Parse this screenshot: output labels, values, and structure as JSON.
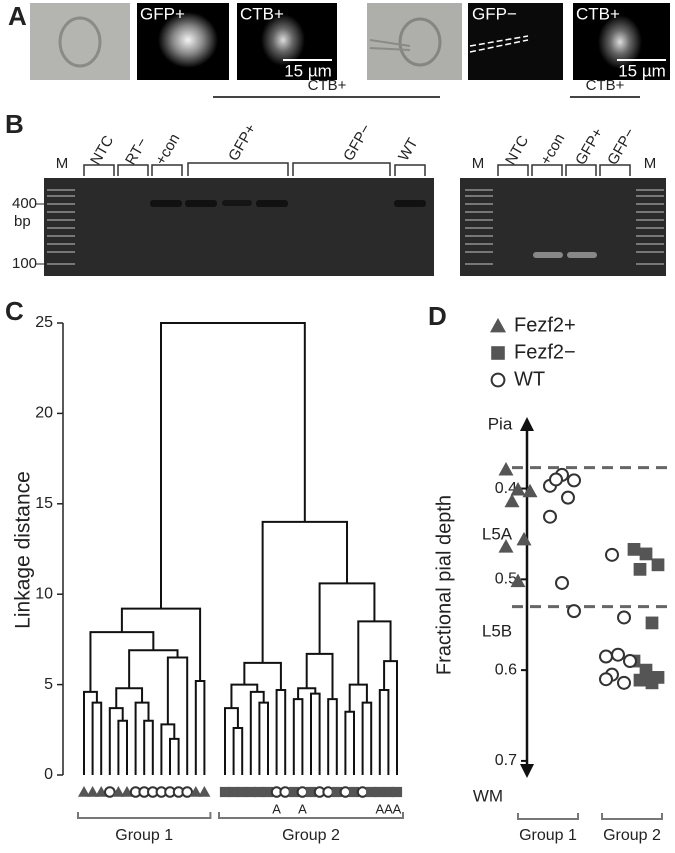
{
  "figure": {
    "panel_labels": [
      "A",
      "B",
      "C",
      "D"
    ],
    "panel_a": {
      "image_labels": [
        "GFP+",
        "CTB+",
        "GFP−",
        "CTB+"
      ],
      "scale_bars": [
        "15 µm",
        "15 µm"
      ]
    },
    "panel_b": {
      "group_labels": [
        "CTB+",
        "CTB+"
      ],
      "lane_labels_left": [
        "NTC",
        "RT−",
        "+con",
        "GFP+",
        "GFP−",
        "WT"
      ],
      "lane_labels_right": [
        "NTC",
        "+con",
        "GFP+",
        "GFP−"
      ],
      "marker_labels": [
        "M",
        "M",
        "M"
      ],
      "size_labels": [
        400,
        100
      ],
      "size_unit": "bp"
    }
  },
  "chart_data": [
    {
      "type": "dendrogram",
      "ylabel": "Linkage distance",
      "ylim": [
        0,
        25
      ],
      "yticks": [
        0,
        5,
        10,
        15,
        20,
        25
      ],
      "group_labels": [
        "Group 1",
        "Group 2"
      ],
      "marker_colors": {
        "triangle": "#555555",
        "square": "#555555",
        "circle": "#ffffff"
      },
      "tree": {
        "height": 25,
        "children": [
          {
            "height": 9.2,
            "children": [
              {
                "height": 7.9,
                "children": [
                  {
                    "height": 4.6,
                    "children": [
                      {
                        "marker": "triangle"
                      },
                      {
                        "height": 4.0,
                        "children": [
                          {
                            "marker": "triangle"
                          },
                          {
                            "marker": "triangle"
                          }
                        ]
                      }
                    ]
                  },
                  {
                    "height": 6.9,
                    "children": [
                      {
                        "height": 4.8,
                        "children": [
                          {
                            "height": 3.7,
                            "children": [
                              {
                                "marker": "circle"
                              },
                              {
                                "height": 3.0,
                                "children": [
                                  {
                                    "marker": "triangle"
                                  },
                                  {
                                    "marker": "triangle"
                                  }
                                ]
                              }
                            ]
                          },
                          {
                            "height": 4.0,
                            "children": [
                              {
                                "marker": "circle"
                              },
                              {
                                "height": 3.0,
                                "children": [
                                  {
                                    "marker": "circle"
                                  },
                                  {
                                    "marker": "circle"
                                  }
                                ]
                              }
                            ]
                          }
                        ]
                      },
                      {
                        "height": 6.5,
                        "children": [
                          {
                            "height": 2.8,
                            "children": [
                              {
                                "marker": "circle"
                              },
                              {
                                "height": 2.0,
                                "children": [
                                  {
                                    "marker": "circle"
                                  },
                                  {
                                    "marker": "circle"
                                  }
                                ]
                              }
                            ]
                          },
                          {
                            "marker": "circle"
                          }
                        ]
                      }
                    ]
                  }
                ]
              },
              {
                "height": 5.2,
                "children": [
                  {
                    "marker": "triangle"
                  },
                  {
                    "marker": "triangle"
                  }
                ]
              }
            ]
          },
          {
            "height": 14.0,
            "children": [
              {
                "height": 6.2,
                "children": [
                  {
                    "height": 5.0,
                    "children": [
                      {
                        "height": 3.7,
                        "children": [
                          {
                            "marker": "square"
                          },
                          {
                            "height": 2.6,
                            "children": [
                              {
                                "marker": "square"
                              },
                              {
                                "marker": "square"
                              }
                            ]
                          }
                        ]
                      },
                      {
                        "height": 4.6,
                        "children": [
                          {
                            "marker": "square"
                          },
                          {
                            "height": 4.0,
                            "children": [
                              {
                                "marker": "square"
                              },
                              {
                                "marker": "square"
                              }
                            ]
                          }
                        ]
                      }
                    ]
                  },
                  {
                    "height": 4.7,
                    "children": [
                      {
                        "marker": "circle",
                        "label": "A"
                      },
                      {
                        "marker": "circle"
                      }
                    ]
                  }
                ]
              },
              {
                "height": 10.6,
                "children": [
                  {
                    "height": 6.7,
                    "children": [
                      {
                        "height": 4.8,
                        "children": [
                          {
                            "height": 4.2,
                            "children": [
                              {
                                "marker": "square"
                              },
                              {
                                "marker": "circle",
                                "label": "A"
                              }
                            ]
                          },
                          {
                            "height": 4.5,
                            "children": [
                              {
                                "marker": "square"
                              },
                              {
                                "marker": "circle"
                              }
                            ]
                          }
                        ]
                      },
                      {
                        "height": 4.2,
                        "children": [
                          {
                            "marker": "circle"
                          },
                          {
                            "marker": "square"
                          }
                        ]
                      }
                    ]
                  },
                  {
                    "height": 8.5,
                    "children": [
                      {
                        "height": 5.0,
                        "children": [
                          {
                            "height": 3.5,
                            "children": [
                              {
                                "marker": "circle"
                              },
                              {
                                "marker": "square"
                              }
                            ]
                          },
                          {
                            "height": 4.0,
                            "children": [
                              {
                                "marker": "circle"
                              },
                              {
                                "marker": "square"
                              }
                            ]
                          }
                        ]
                      },
                      {
                        "height": 6.3,
                        "children": [
                          {
                            "height": 4.7,
                            "children": [
                              {
                                "marker": "square",
                                "label": "A"
                              },
                              {
                                "marker": "square",
                                "label": "A"
                              }
                            ]
                          },
                          {
                            "marker": "square",
                            "label": "A"
                          }
                        ]
                      }
                    ]
                  }
                ]
              }
            ]
          }
        ]
      }
    },
    {
      "type": "scatter",
      "ylabel": "Fractional pial depth",
      "categories": [
        "Group 1",
        "Group 2"
      ],
      "ylim": [
        0.33,
        0.71
      ],
      "inverted": true,
      "yticks": [
        0.4,
        0.5,
        0.6,
        0.7
      ],
      "annotations": [
        "Pia",
        "L5A",
        "L5B",
        "WM"
      ],
      "boundaries": [
        0.377,
        0.53
      ],
      "series": [
        {
          "name": "Fezf2+",
          "marker": "triangle",
          "color": "#555555",
          "x": [
            "Group 1",
            "Group 1",
            "Group 1",
            "Group 1",
            "Group 1",
            "Group 1",
            "Group 1"
          ],
          "values": [
            0.379,
            0.401,
            0.403,
            0.414,
            0.456,
            0.464,
            0.502
          ]
        },
        {
          "name": "Fezf2−",
          "marker": "square",
          "color": "#555555",
          "x": [
            "Group 2",
            "Group 2",
            "Group 2",
            "Group 2",
            "Group 2",
            "Group 2",
            "Group 2",
            "Group 2",
            "Group 2",
            "Group 2"
          ],
          "values": [
            0.467,
            0.472,
            0.484,
            0.489,
            0.548,
            0.59,
            0.6,
            0.608,
            0.611,
            0.614
          ]
        },
        {
          "name": "WT",
          "marker": "circle",
          "color": "#ffffff",
          "x": [
            "Group 1",
            "Group 1",
            "Group 1",
            "Group 1",
            "Group 1",
            "Group 1",
            "Group 1",
            "Group 1",
            "Group 2",
            "Group 2",
            "Group 2",
            "Group 2",
            "Group 2",
            "Group 2",
            "Group 2",
            "Group 2"
          ],
          "values": [
            0.397,
            0.385,
            0.391,
            0.39,
            0.41,
            0.431,
            0.504,
            0.535,
            0.473,
            0.542,
            0.585,
            0.583,
            0.59,
            0.605,
            0.614,
            0.61
          ]
        }
      ]
    }
  ]
}
